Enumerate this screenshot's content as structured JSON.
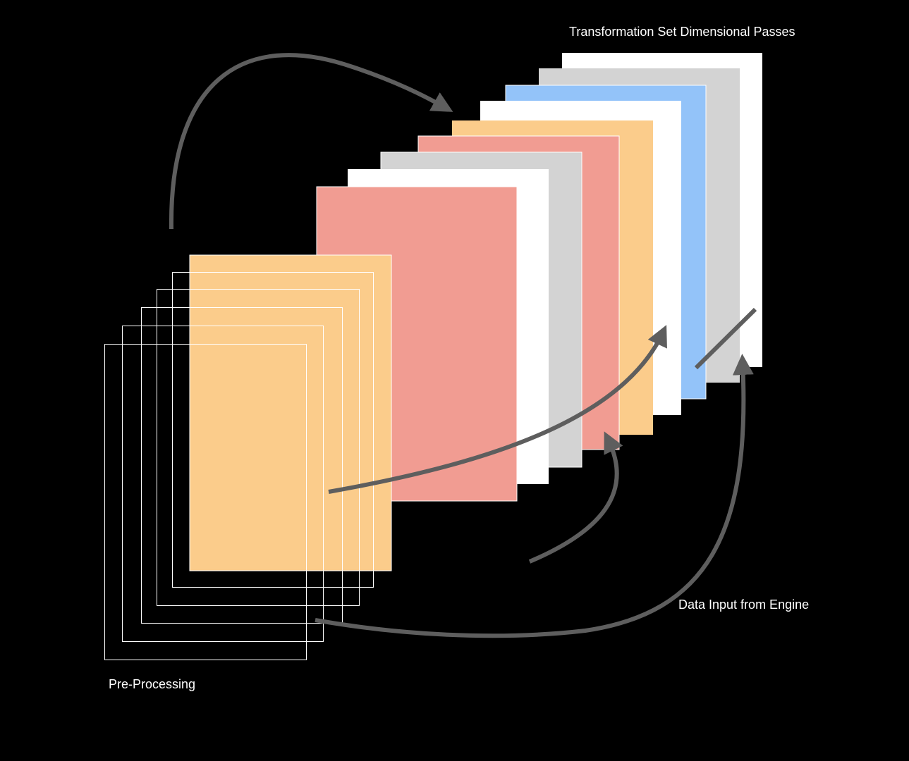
{
  "labels": {
    "transformation": "Transformation Set Dimensional Passes",
    "data_input": "Data Input from Engine",
    "pre_processing": "Pre-Processing"
  },
  "colors": {
    "background": "#000000",
    "white": "#ffffff",
    "gray": "#d3d3d3",
    "blue": "#93c3f9",
    "orange": "#fbcc8b",
    "salmon": "#f19c92",
    "arrow": "#5e5e5e",
    "outline": "#ffffff"
  }
}
